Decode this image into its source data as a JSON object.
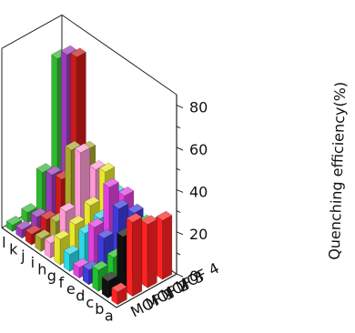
{
  "chart_data": {
    "type": "bar3d",
    "title": "",
    "zlabel": "Quenching efficiency(%)",
    "zlim": [
      0,
      85
    ],
    "zticks": [
      0,
      20,
      40,
      60,
      80
    ],
    "categories": [
      "a",
      "b",
      "c",
      "d",
      "e",
      "f",
      "g",
      "h",
      "i",
      "j",
      "k",
      "l"
    ],
    "series": [
      {
        "name": "MOF 1",
        "values": [
          6,
          8,
          10,
          7,
          5,
          8,
          12,
          7,
          6,
          5,
          4,
          3
        ]
      },
      {
        "name": "MOF 2",
        "values": [
          35,
          25,
          12,
          18,
          20,
          14,
          15,
          18,
          10,
          8,
          6,
          5
        ]
      },
      {
        "name": "MOF 3",
        "values": [
          30,
          22,
          15,
          28,
          35,
          17,
          20,
          42,
          40,
          23,
          22,
          20
        ]
      },
      {
        "name": "MOF 4",
        "values": [
          28,
          22,
          20,
          22,
          27,
          25,
          32,
          30,
          36,
          77,
          75,
          70
        ]
      }
    ],
    "colors": [
      "#ff2222",
      "#111111",
      "#22c22c",
      "#3c3cdc",
      "#e040e0",
      "#2ad8e8",
      "#e8e82a",
      "#ff9ad6",
      "#a8a82a",
      "#cc1a1a",
      "#9a3ab8",
      "#30b830"
    ]
  }
}
